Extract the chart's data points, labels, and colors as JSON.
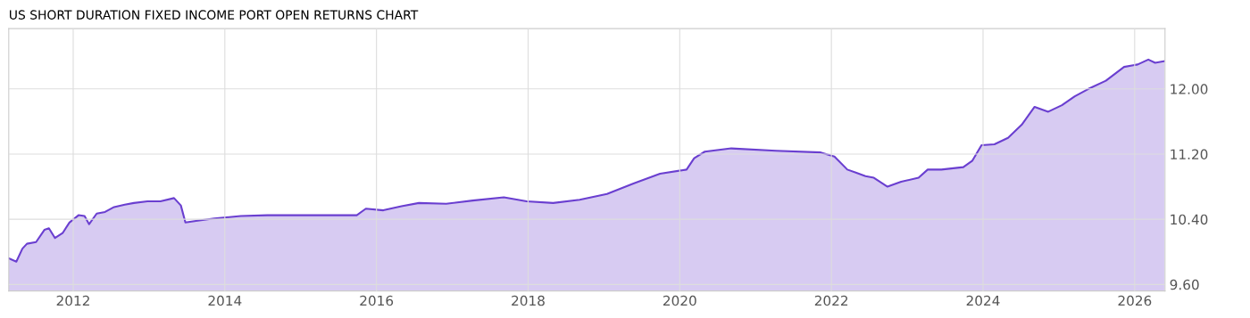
{
  "chart_data": {
    "type": "area",
    "title": "US SHORT DURATION FIXED INCOME PORT OPEN RETURNS CHART",
    "x": [
      2011.15,
      2011.25,
      2011.33,
      2011.39,
      2011.51,
      2011.62,
      2011.68,
      2011.76,
      2011.86,
      2011.95,
      2012.07,
      2012.15,
      2012.21,
      2012.31,
      2012.42,
      2012.54,
      2012.68,
      2012.8,
      2012.98,
      2013.15,
      2013.33,
      2013.42,
      2013.48,
      2013.62,
      2013.86,
      2014.21,
      2014.56,
      2015.15,
      2015.74,
      2015.86,
      2016.09,
      2016.33,
      2016.56,
      2016.92,
      2017.27,
      2017.68,
      2017.98,
      2018.33,
      2018.68,
      2019.04,
      2019.39,
      2019.74,
      2020.09,
      2020.19,
      2020.33,
      2020.68,
      2021.27,
      2021.86,
      2022.04,
      2022.21,
      2022.33,
      2022.45,
      2022.56,
      2022.74,
      2022.92,
      2023.15,
      2023.27,
      2023.45,
      2023.74,
      2023.86,
      2023.98,
      2024.15,
      2024.33,
      2024.51,
      2024.68,
      2024.86,
      2025.04,
      2025.21,
      2025.39,
      2025.62,
      2025.86,
      2026.04,
      2026.18,
      2026.27,
      2026.39
    ],
    "series": [
      {
        "color": "#6a3fd0",
        "values": [
          9.92,
          9.88,
          10.04,
          10.1,
          10.12,
          10.27,
          10.29,
          10.17,
          10.23,
          10.36,
          10.45,
          10.44,
          10.34,
          10.47,
          10.49,
          10.55,
          10.58,
          10.6,
          10.62,
          10.62,
          10.66,
          10.57,
          10.36,
          10.38,
          10.41,
          10.44,
          10.45,
          10.45,
          10.45,
          10.53,
          10.51,
          10.56,
          10.6,
          10.59,
          10.63,
          10.67,
          10.62,
          10.6,
          10.64,
          10.71,
          10.84,
          10.96,
          11.01,
          11.15,
          11.23,
          11.27,
          11.24,
          11.22,
          11.17,
          11.01,
          10.97,
          10.93,
          10.91,
          10.8,
          10.86,
          10.91,
          11.01,
          11.01,
          11.04,
          11.12,
          11.31,
          11.32,
          11.4,
          11.56,
          11.78,
          11.72,
          11.8,
          11.91,
          12.0,
          12.1,
          12.27,
          12.3,
          12.36,
          12.32,
          12.34
        ]
      }
    ],
    "xlim": [
      2011.15,
      2026.4
    ],
    "ylim": [
      9.52,
      12.74
    ],
    "xticks": [
      2012,
      2014,
      2016,
      2018,
      2020,
      2022,
      2024,
      2026
    ],
    "yticks": [
      {
        "value": 9.6,
        "label": "9.60"
      },
      {
        "value": 10.4,
        "label": "10.40"
      },
      {
        "value": 11.2,
        "label": "11.20"
      },
      {
        "value": 12.0,
        "label": "12.00"
      }
    ],
    "grid": true
  }
}
